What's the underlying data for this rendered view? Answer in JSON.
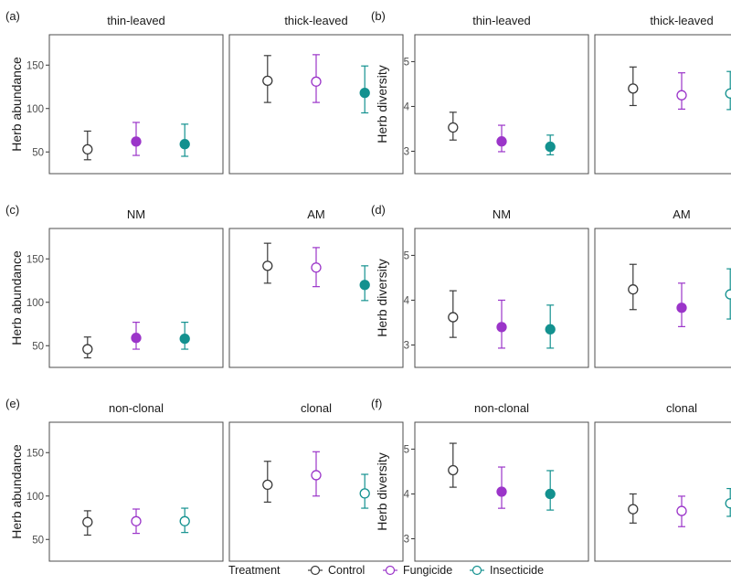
{
  "treatments": [
    {
      "name": "Control",
      "color": "#3a3a3a"
    },
    {
      "name": "Fungicide",
      "color": "#9b35c9"
    },
    {
      "name": "Insecticide",
      "color": "#13918f"
    }
  ],
  "legend": {
    "title": "Treatment",
    "items": [
      "Control",
      "Fungicide",
      "Insecticide"
    ]
  },
  "chart_data": [
    {
      "type": "scatter",
      "tag": "(a)",
      "ylabel": "Herb abundance",
      "ylim": [
        25,
        185
      ],
      "yticks": [
        50,
        100,
        150
      ],
      "facets": [
        {
          "title": "thin-leaved",
          "points": [
            {
              "treatment": "Control",
              "y": 53,
              "lo": 41,
              "hi": 74,
              "filled": false
            },
            {
              "treatment": "Fungicide",
              "y": 62,
              "lo": 46,
              "hi": 84,
              "filled": true
            },
            {
              "treatment": "Insecticide",
              "y": 59,
              "lo": 45,
              "hi": 82,
              "filled": true
            }
          ]
        },
        {
          "title": "thick-leaved",
          "points": [
            {
              "treatment": "Control",
              "y": 132,
              "lo": 107,
              "hi": 161,
              "filled": false
            },
            {
              "treatment": "Fungicide",
              "y": 131,
              "lo": 107,
              "hi": 162,
              "filled": false
            },
            {
              "treatment": "Insecticide",
              "y": 118,
              "lo": 95,
              "hi": 149,
              "filled": true
            }
          ]
        }
      ]
    },
    {
      "type": "scatter",
      "tag": "(b)",
      "ylabel": "Herb diversity",
      "ylim": [
        2.5,
        5.6
      ],
      "yticks": [
        3,
        4,
        5
      ],
      "facets": [
        {
          "title": "thin-leaved",
          "points": [
            {
              "treatment": "Control",
              "y": 3.53,
              "lo": 3.25,
              "hi": 3.87,
              "filled": false
            },
            {
              "treatment": "Fungicide",
              "y": 3.22,
              "lo": 2.99,
              "hi": 3.58,
              "filled": true
            },
            {
              "treatment": "Insecticide",
              "y": 3.1,
              "lo": 2.92,
              "hi": 3.36,
              "filled": true
            }
          ]
        },
        {
          "title": "thick-leaved",
          "points": [
            {
              "treatment": "Control",
              "y": 4.4,
              "lo": 4.02,
              "hi": 4.88,
              "filled": false
            },
            {
              "treatment": "Fungicide",
              "y": 4.25,
              "lo": 3.94,
              "hi": 4.75,
              "filled": false
            },
            {
              "treatment": "Insecticide",
              "y": 4.29,
              "lo": 3.93,
              "hi": 4.78,
              "filled": false
            }
          ]
        }
      ]
    },
    {
      "type": "scatter",
      "tag": "(c)",
      "ylabel": "Herb abundance",
      "ylim": [
        25,
        185
      ],
      "yticks": [
        50,
        100,
        150
      ],
      "facets": [
        {
          "title": "NM",
          "points": [
            {
              "treatment": "Control",
              "y": 46,
              "lo": 36,
              "hi": 60,
              "filled": false
            },
            {
              "treatment": "Fungicide",
              "y": 59,
              "lo": 46,
              "hi": 77,
              "filled": true
            },
            {
              "treatment": "Insecticide",
              "y": 58,
              "lo": 46,
              "hi": 77,
              "filled": true
            }
          ]
        },
        {
          "title": "AM",
          "points": [
            {
              "treatment": "Control",
              "y": 142,
              "lo": 122,
              "hi": 168,
              "filled": false
            },
            {
              "treatment": "Fungicide",
              "y": 140,
              "lo": 118,
              "hi": 163,
              "filled": false
            },
            {
              "treatment": "Insecticide",
              "y": 120,
              "lo": 102,
              "hi": 142,
              "filled": true
            }
          ]
        }
      ]
    },
    {
      "type": "scatter",
      "tag": "(d)",
      "ylabel": "Herb diversity",
      "ylim": [
        2.5,
        5.6
      ],
      "yticks": [
        3,
        4,
        5
      ],
      "facets": [
        {
          "title": "NM",
          "points": [
            {
              "treatment": "Control",
              "y": 3.62,
              "lo": 3.17,
              "hi": 4.21,
              "filled": false
            },
            {
              "treatment": "Fungicide",
              "y": 3.4,
              "lo": 2.93,
              "hi": 4.0,
              "filled": true
            },
            {
              "treatment": "Insecticide",
              "y": 3.35,
              "lo": 2.93,
              "hi": 3.89,
              "filled": true
            }
          ]
        },
        {
          "title": "AM",
          "points": [
            {
              "treatment": "Control",
              "y": 4.24,
              "lo": 3.79,
              "hi": 4.8,
              "filled": false
            },
            {
              "treatment": "Fungicide",
              "y": 3.83,
              "lo": 3.41,
              "hi": 4.38,
              "filled": true
            },
            {
              "treatment": "Insecticide",
              "y": 4.13,
              "lo": 3.58,
              "hi": 4.7,
              "filled": false
            }
          ]
        }
      ]
    },
    {
      "type": "scatter",
      "tag": "(e)",
      "ylabel": "Herb abundance",
      "ylim": [
        25,
        185
      ],
      "yticks": [
        50,
        100,
        150
      ],
      "facets": [
        {
          "title": "non-clonal",
          "points": [
            {
              "treatment": "Control",
              "y": 70,
              "lo": 55,
              "hi": 83,
              "filled": false
            },
            {
              "treatment": "Fungicide",
              "y": 71,
              "lo": 57,
              "hi": 85,
              "filled": false
            },
            {
              "treatment": "Insecticide",
              "y": 71,
              "lo": 58,
              "hi": 86,
              "filled": false
            }
          ]
        },
        {
          "title": "clonal",
          "points": [
            {
              "treatment": "Control",
              "y": 113,
              "lo": 93,
              "hi": 140,
              "filled": false
            },
            {
              "treatment": "Fungicide",
              "y": 124,
              "lo": 100,
              "hi": 151,
              "filled": false
            },
            {
              "treatment": "Insecticide",
              "y": 103,
              "lo": 86,
              "hi": 125,
              "filled": false
            }
          ]
        }
      ]
    },
    {
      "type": "scatter",
      "tag": "(f)",
      "ylabel": "Herb diversity",
      "ylim": [
        2.5,
        5.6
      ],
      "yticks": [
        3,
        4,
        5
      ],
      "facets": [
        {
          "title": "non-clonal",
          "points": [
            {
              "treatment": "Control",
              "y": 4.53,
              "lo": 4.15,
              "hi": 5.13,
              "filled": false
            },
            {
              "treatment": "Fungicide",
              "y": 4.05,
              "lo": 3.68,
              "hi": 4.6,
              "filled": true
            },
            {
              "treatment": "Insecticide",
              "y": 4.0,
              "lo": 3.64,
              "hi": 4.52,
              "filled": true
            }
          ]
        },
        {
          "title": "clonal",
          "points": [
            {
              "treatment": "Control",
              "y": 3.66,
              "lo": 3.35,
              "hi": 4.0,
              "filled": false
            },
            {
              "treatment": "Fungicide",
              "y": 3.62,
              "lo": 3.27,
              "hi": 3.95,
              "filled": false
            },
            {
              "treatment": "Insecticide",
              "y": 3.79,
              "lo": 3.5,
              "hi": 4.12,
              "filled": false
            }
          ]
        }
      ]
    }
  ]
}
